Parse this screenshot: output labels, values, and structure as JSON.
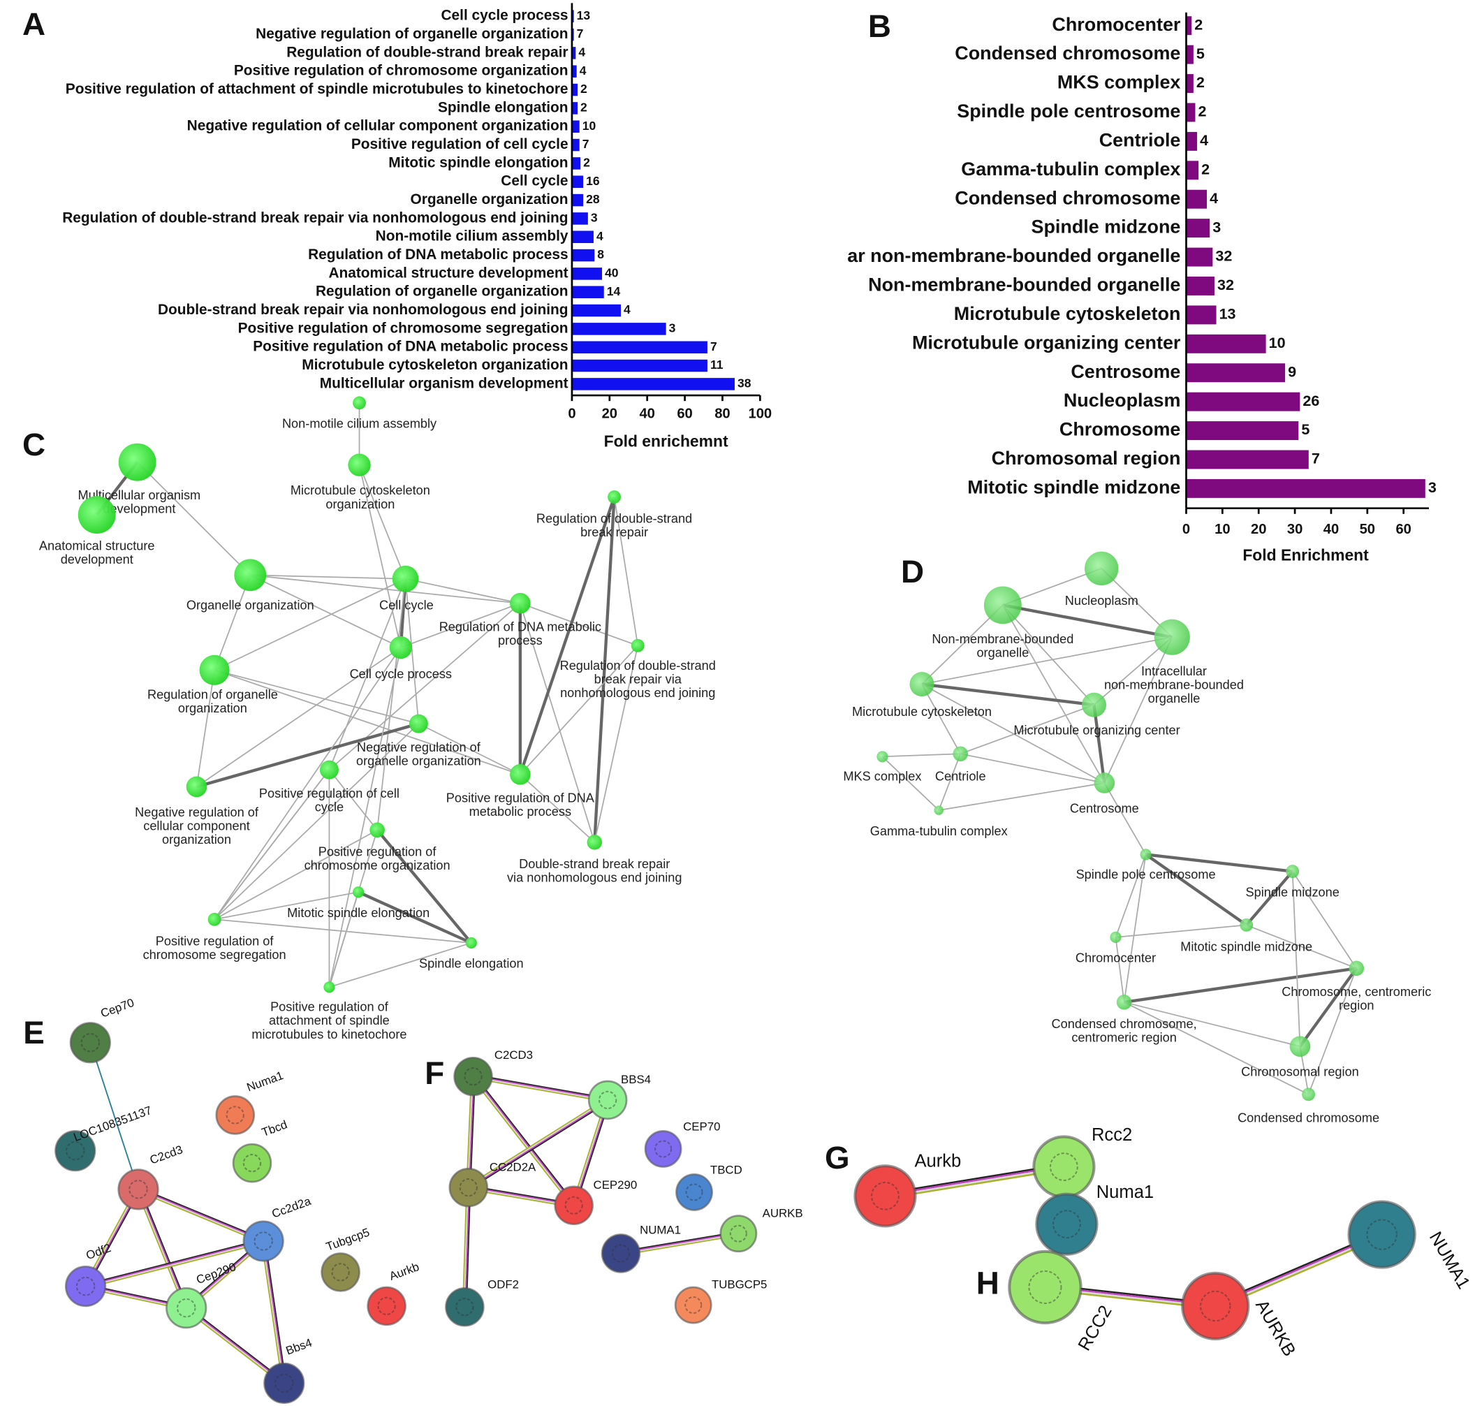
{
  "panel_labels": [
    "A",
    "B",
    "C",
    "D",
    "E",
    "F",
    "G",
    "H"
  ],
  "chart_data": [
    {
      "type": "barh",
      "categories": [
        "Cell cycle process",
        "Negative regulation of organelle organization",
        "Regulation of double-strand break repair",
        "Positive regulation of chromosome organization",
        "Positive regulation of attachment of spindle microtubules to kinetochore",
        "Spindle elongation",
        "Negative regulation of cellular component organization",
        "Positive regulation of cell cycle",
        "Mitotic spindle elongation",
        "Cell cycle",
        "Organelle organization",
        "Regulation of double-strand break repair via nonhomologous end joining",
        "Non-motile cilium assembly",
        "Regulation of DNA metabolic process",
        "Anatomical structure development",
        "Regulation of organelle organization",
        "Double-strand break repair via nonhomologous end joining",
        "Positive regulation of chromosome segregation",
        "Positive regulation of DNA metabolic process",
        "Microtubule cytoskeleton organization",
        "Multicellular organism development"
      ],
      "values": [
        1,
        1,
        2,
        2.5,
        3,
        3,
        4,
        4,
        4.5,
        6,
        6,
        8.5,
        11.5,
        12,
        16,
        17,
        26,
        50,
        72,
        72,
        86.5
      ],
      "gene_counts": [
        13,
        7,
        4,
        4,
        2,
        2,
        10,
        7,
        2,
        16,
        28,
        3,
        4,
        8,
        40,
        14,
        4,
        3,
        7,
        11,
        38
      ],
      "color": "#1010f0",
      "xlim": [
        0,
        100
      ],
      "xticks": [
        0,
        20,
        40,
        60,
        80,
        100
      ],
      "xlabel": "Fold enrichemnt"
    },
    {
      "type": "barh",
      "categories": [
        "Chromocenter",
        "Condensed chromosome",
        "MKS complex",
        "Spindle pole centrosome",
        "Centriole",
        "Gamma-tubulin complex",
        "Condensed chromosome",
        "Spindle midzone",
        "ar non-membrane-bounded organelle",
        "Non-membrane-bounded organelle",
        "Microtubule cytoskeleton",
        "Microtubule organizing center",
        "Centrosome",
        "Nucleoplasm",
        "Chromosome",
        "Chromosomal region",
        "Mitotic spindle midzone"
      ],
      "values": [
        1.5,
        2,
        2,
        2.5,
        3,
        3.4,
        5.7,
        6.5,
        7.3,
        7.8,
        8.3,
        22,
        27.3,
        31.4,
        31,
        33.8,
        66
      ],
      "gene_counts": [
        2,
        5,
        2,
        2,
        4,
        2,
        4,
        3,
        32,
        32,
        13,
        10,
        9,
        26,
        5,
        7,
        3
      ],
      "color": "#7f0a7f",
      "xlim": [
        0,
        67
      ],
      "xticks": [
        0,
        10,
        20,
        30,
        40,
        50,
        60
      ],
      "xlabel": "Fold Enrichment"
    }
  ],
  "networks": [
    {
      "nodes": [
        {
          "label": [
            "Non-motile cilium assembly"
          ]
        },
        {
          "label": [
            "Microtubule cytoskeleton",
            "organization"
          ]
        },
        {
          "label": [
            "Multicellular organism",
            "development"
          ]
        },
        {
          "label": [
            "Anatomical structure",
            "development"
          ]
        },
        {
          "label": [
            "Organelle organization"
          ]
        },
        {
          "label": [
            "Cell cycle"
          ]
        },
        {
          "label": [
            "Regulation of DNA metabolic",
            "process"
          ]
        },
        {
          "label": [
            "Regulation of double-strand",
            "break repair"
          ]
        },
        {
          "label": [
            "Cell cycle process"
          ]
        },
        {
          "label": [
            "Regulation of double-strand",
            "break repair via",
            "nonhomologous end joining"
          ]
        },
        {
          "label": [
            "Regulation of organelle",
            "organization"
          ]
        },
        {
          "label": [
            "Negative regulation of",
            "organelle organization"
          ]
        },
        {
          "label": [
            "Negative regulation of",
            "cellular component",
            "organization"
          ]
        },
        {
          "label": [
            "Positive regulation of cell",
            "cycle"
          ]
        },
        {
          "label": [
            "Positive regulation of DNA",
            "metabolic process"
          ]
        },
        {
          "label": [
            "Positive regulation of",
            "chromosome organization"
          ]
        },
        {
          "label": [
            "Double-strand break repair",
            "via nonhomologous end joining"
          ]
        },
        {
          "label": [
            "Mitotic spindle elongation"
          ]
        },
        {
          "label": [
            "Positive regulation of",
            "chromosome segregation"
          ]
        },
        {
          "label": [
            "Spindle elongation"
          ]
        },
        {
          "label": [
            "Positive regulation of",
            "attachment of spindle",
            "microtubules to kinetochore"
          ]
        }
      ]
    },
    {
      "nodes": [
        {
          "label": [
            "Nucleoplasm"
          ]
        },
        {
          "label": [
            "Non-membrane-bounded",
            "organelle"
          ]
        },
        {
          "label": [
            "Intracellular",
            "non-membrane-bounded",
            "organelle"
          ]
        },
        {
          "label": [
            "Microtubule cytoskeleton"
          ]
        },
        {
          "label": [
            "Microtubule organizing center"
          ]
        },
        {
          "label": [
            "MKS complex"
          ]
        },
        {
          "label": [
            "Centriole"
          ]
        },
        {
          "label": [
            "Centrosome"
          ]
        },
        {
          "label": [
            "Gamma-tubulin complex"
          ]
        },
        {
          "label": [
            "Spindle pole centrosome"
          ]
        },
        {
          "label": [
            "Spindle midzone"
          ]
        },
        {
          "label": [
            "Mitotic spindle midzone"
          ]
        },
        {
          "label": [
            "Chromocenter"
          ]
        },
        {
          "label": [
            "Chromosome, centromeric",
            "region"
          ]
        },
        {
          "label": [
            "Condensed chromosome,",
            "centromeric region"
          ]
        },
        {
          "label": [
            "Chromosomal region"
          ]
        },
        {
          "label": [
            "Condensed chromosome"
          ]
        }
      ]
    },
    {
      "nodes": [
        {
          "label": "Cep70",
          "color": "#4f7f45"
        },
        {
          "label": "LOC108351137",
          "color": "#2f6d6e"
        },
        {
          "label": "Numa1",
          "color": "#f07c56"
        },
        {
          "label": "Tbcd",
          "color": "#88d85c"
        },
        {
          "label": "C2cd3",
          "color": "#d96b6b"
        },
        {
          "label": "Cc2d2a",
          "color": "#5b8fd9"
        },
        {
          "label": "Odf2",
          "color": "#7f6bf0"
        },
        {
          "label": "Cep290",
          "color": "#8ef08e"
        },
        {
          "label": "Tubgcp5",
          "color": "#8e8c4d"
        },
        {
          "label": "Aurkb",
          "color": "#ef4646"
        },
        {
          "label": "Bbs4",
          "color": "#3a4585"
        }
      ]
    },
    {
      "nodes": [
        {
          "label": "C2CD3",
          "color": "#4f7f45"
        },
        {
          "label": "BBS4",
          "color": "#8ef08e"
        },
        {
          "label": "CEP70",
          "color": "#7f6bf0"
        },
        {
          "label": "CC2D2A",
          "color": "#8e8c4d"
        },
        {
          "label": "CEP290",
          "color": "#ef4646"
        },
        {
          "label": "TBCD",
          "color": "#4a86d0"
        },
        {
          "label": "AURKB",
          "color": "#8ed86c"
        },
        {
          "label": "NUMA1",
          "color": "#3a4585"
        },
        {
          "label": "ODF2",
          "color": "#2f6d6e"
        },
        {
          "label": "TUBGCP5",
          "color": "#f48a5c"
        }
      ]
    },
    {
      "nodes": [
        {
          "label": "Aurkb",
          "color": "#ef4646"
        },
        {
          "label": "Rcc2",
          "color": "#9be46b"
        },
        {
          "label": "Numa1",
          "color": "#2f7f8e"
        }
      ]
    },
    {
      "nodes": [
        {
          "label": "RCC2",
          "color": "#9be46b"
        },
        {
          "label": "AURKB",
          "color": "#ef4646"
        },
        {
          "label": "NUMA1",
          "color": "#2f7f8e"
        }
      ]
    }
  ]
}
